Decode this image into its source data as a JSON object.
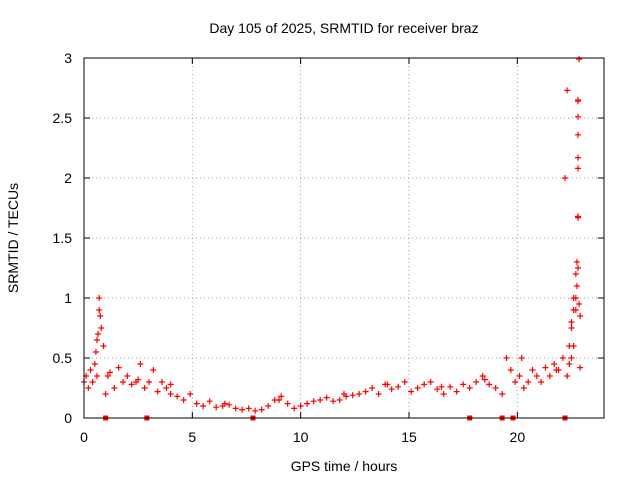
{
  "chart_data": {
    "type": "scatter",
    "title": "Day 105 of 2025, SRMTID for receiver braz",
    "xlabel": "GPS time / hours",
    "ylabel": "SRMTID / TECUs",
    "xlim": [
      0,
      24
    ],
    "ylim": [
      0,
      3
    ],
    "x_ticks": [
      0,
      5,
      10,
      15,
      20
    ],
    "x_tick_labels": [
      "0",
      "5",
      "10",
      "15",
      "20"
    ],
    "y_ticks": [
      0,
      0.5,
      1,
      1.5,
      2,
      2.5,
      3
    ],
    "y_tick_labels": [
      "0",
      "0.5",
      "1",
      "1.5",
      "2",
      "2.5",
      "3"
    ],
    "grid": true,
    "marker": "+",
    "series": [
      {
        "name": "SRMTID",
        "color": "#ff0000",
        "x": [
          0.0,
          0.1,
          0.2,
          0.3,
          0.4,
          0.5,
          0.6,
          0.7,
          0.8,
          0.9,
          1.0,
          1.2,
          1.4,
          1.6,
          1.8,
          2.0,
          2.2,
          2.4,
          2.6,
          2.8,
          3.0,
          3.2,
          3.4,
          3.6,
          3.8,
          4.0,
          4.3,
          4.6,
          4.9,
          5.2,
          5.5,
          5.8,
          6.1,
          6.4,
          6.7,
          7.0,
          7.3,
          7.6,
          7.9,
          8.2,
          8.5,
          8.8,
          9.1,
          9.4,
          9.7,
          10.0,
          10.3,
          10.6,
          10.9,
          11.2,
          11.5,
          11.8,
          12.1,
          12.4,
          12.7,
          13.0,
          13.3,
          13.6,
          13.9,
          14.2,
          14.5,
          14.8,
          15.1,
          15.4,
          15.7,
          16.0,
          16.3,
          16.6,
          16.9,
          17.2,
          17.5,
          17.8,
          18.1,
          18.4,
          18.7,
          19.0,
          19.3,
          19.5,
          19.7,
          19.9,
          20.1,
          20.3,
          20.5,
          20.7,
          20.9,
          21.1,
          21.3,
          21.5,
          21.7,
          21.9,
          22.1,
          22.3,
          22.4,
          22.5,
          22.6,
          22.7,
          22.75,
          22.8,
          22.85,
          22.9,
          0.55,
          0.65,
          0.7,
          0.75,
          0.6,
          1.1,
          2.5,
          4.0,
          6.5,
          9.0,
          12.0,
          14.0,
          16.5,
          18.5,
          20.2,
          21.8,
          22.2,
          22.3,
          22.5,
          22.6,
          22.7,
          22.75,
          22.8,
          22.8,
          22.8,
          22.8,
          22.8,
          22.8,
          22.8,
          22.8,
          22.85,
          22.9,
          22.7,
          22.6,
          22.5,
          22.4
        ],
        "y": [
          0.3,
          0.35,
          0.25,
          0.4,
          0.3,
          0.45,
          0.35,
          0.9,
          0.75,
          0.6,
          0.2,
          0.38,
          0.25,
          0.42,
          0.3,
          0.35,
          0.28,
          0.3,
          0.45,
          0.25,
          0.3,
          0.4,
          0.22,
          0.3,
          0.25,
          0.2,
          0.18,
          0.15,
          0.2,
          0.12,
          0.1,
          0.14,
          0.09,
          0.1,
          0.11,
          0.08,
          0.07,
          0.08,
          0.06,
          0.07,
          0.1,
          0.15,
          0.18,
          0.12,
          0.08,
          0.1,
          0.12,
          0.14,
          0.15,
          0.17,
          0.14,
          0.15,
          0.18,
          0.19,
          0.2,
          0.22,
          0.25,
          0.2,
          0.28,
          0.24,
          0.26,
          0.3,
          0.22,
          0.25,
          0.28,
          0.3,
          0.24,
          0.2,
          0.26,
          0.22,
          0.28,
          0.25,
          0.3,
          0.35,
          0.28,
          0.25,
          0.2,
          0.5,
          0.4,
          0.3,
          0.35,
          0.25,
          0.3,
          0.4,
          0.35,
          0.3,
          0.42,
          0.35,
          0.45,
          0.4,
          0.5,
          0.35,
          0.6,
          0.8,
          0.9,
          1.0,
          1.1,
          1.25,
          0.95,
          0.85,
          0.55,
          0.7,
          1.0,
          0.85,
          0.65,
          0.35,
          0.32,
          0.28,
          0.12,
          0.15,
          0.2,
          0.28,
          0.26,
          0.32,
          0.5,
          0.4,
          2.0,
          2.73,
          0.75,
          1.0,
          1.2,
          1.3,
          1.68,
          1.67,
          2.08,
          2.17,
          2.36,
          2.51,
          2.64,
          2.65,
          2.99,
          0.42,
          0.9,
          0.6,
          0.5,
          0.45
        ],
        "zero_markers_x": [
          1.0,
          2.9,
          7.8,
          17.8,
          19.3,
          19.8,
          22.2
        ]
      }
    ]
  }
}
